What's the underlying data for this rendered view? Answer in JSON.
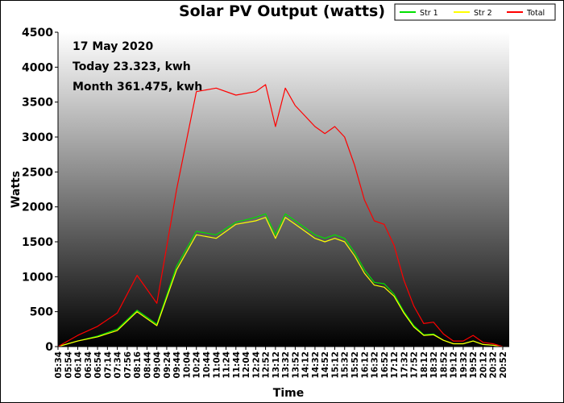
{
  "colors": {
    "str1": "#00e000",
    "str2": "#ffff00",
    "total": "#ff0000",
    "plot_top": "#ffffff",
    "plot_bottom": "#000000"
  },
  "chart_data": {
    "type": "line",
    "title": "Solar PV Output (watts)",
    "xlabel": "Time",
    "ylabel": "Watts",
    "ylim": [
      0,
      4500
    ],
    "y_ticks": [
      0,
      500,
      1000,
      1500,
      2000,
      2500,
      3000,
      3500,
      4000,
      4500
    ],
    "x_tick_labels": [
      "05:34",
      "05:54",
      "06:14",
      "06:34",
      "06:54",
      "07:14",
      "07:34",
      "07:56",
      "08:16",
      "08:44",
      "09:04",
      "09:24",
      "09:44",
      "10:04",
      "10:24",
      "10:44",
      "11:04",
      "11:24",
      "11:44",
      "12:04",
      "12:24",
      "12:52",
      "13:12",
      "13:32",
      "13:52",
      "14:12",
      "14:32",
      "14:52",
      "15:12",
      "15:32",
      "15:52",
      "16:12",
      "16:32",
      "16:52",
      "17:12",
      "17:32",
      "17:52",
      "18:12",
      "18:32",
      "18:52",
      "19:12",
      "19:32",
      "19:52",
      "20:12",
      "20:32",
      "20:52"
    ],
    "grid": false,
    "legend_position": "top-right",
    "annotations": [
      "17 May 2020",
      "Today 23.323, kwh",
      "Month 361.475, kwh"
    ],
    "series": [
      {
        "name": "Str 1",
        "x": [
          0,
          2,
          4,
          6,
          8,
          10,
          12,
          14,
          16,
          18,
          20,
          21,
          22,
          23,
          24,
          25,
          26,
          27,
          28,
          29,
          30,
          31,
          32,
          33,
          34,
          35,
          36,
          37,
          38,
          39,
          40,
          41,
          42,
          43,
          44,
          45
        ],
        "values": [
          0,
          80,
          150,
          250,
          520,
          320,
          1150,
          1650,
          1600,
          1780,
          1850,
          1900,
          1600,
          1900,
          1800,
          1700,
          1600,
          1550,
          1600,
          1550,
          1350,
          1100,
          920,
          900,
          750,
          500,
          300,
          170,
          180,
          90,
          40,
          40,
          80,
          30,
          20,
          0
        ]
      },
      {
        "name": "Str 2",
        "x": [
          0,
          2,
          4,
          6,
          8,
          10,
          12,
          14,
          16,
          18,
          20,
          21,
          22,
          23,
          24,
          25,
          26,
          27,
          28,
          29,
          30,
          31,
          32,
          33,
          34,
          35,
          36,
          37,
          38,
          39,
          40,
          41,
          42,
          43,
          44,
          45
        ],
        "values": [
          0,
          80,
          140,
          230,
          500,
          300,
          1100,
          1600,
          1550,
          1750,
          1800,
          1850,
          1550,
          1850,
          1750,
          1650,
          1550,
          1500,
          1550,
          1500,
          1300,
          1050,
          880,
          850,
          720,
          480,
          280,
          160,
          170,
          90,
          40,
          40,
          80,
          30,
          20,
          0
        ]
      },
      {
        "name": "Total",
        "x": [
          0,
          2,
          4,
          6,
          8,
          10,
          12,
          14,
          16,
          18,
          20,
          21,
          22,
          23,
          24,
          25,
          26,
          27,
          28,
          29,
          30,
          31,
          32,
          33,
          34,
          35,
          36,
          37,
          38,
          39,
          40,
          41,
          42,
          43,
          44,
          45
        ],
        "values": [
          0,
          160,
          290,
          480,
          1020,
          620,
          2250,
          3650,
          3700,
          3600,
          3650,
          3750,
          3150,
          3700,
          3450,
          3300,
          3150,
          3050,
          3150,
          3000,
          2600,
          2100,
          1800,
          1750,
          1450,
          950,
          580,
          330,
          350,
          180,
          80,
          80,
          160,
          60,
          40,
          0
        ]
      }
    ]
  }
}
